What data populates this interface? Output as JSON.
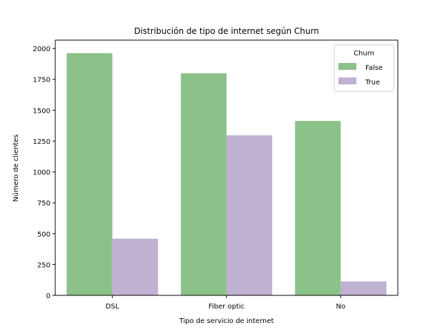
{
  "chart_data": {
    "type": "bar",
    "title": "Distribución de tipo de internet según Churn",
    "xlabel": "Tipo de servicio de internet",
    "ylabel": "Número de clientes",
    "categories": [
      "DSL",
      "Fiber optic",
      "No"
    ],
    "series": [
      {
        "name": "False",
        "color": "#8bc289",
        "values": [
          1962,
          1799,
          1413
        ]
      },
      {
        "name": "True",
        "color": "#bfb1d2",
        "values": [
          459,
          1297,
          113
        ]
      }
    ],
    "ylim": [
      0,
      2068
    ],
    "yticks": [
      0,
      250,
      500,
      750,
      1000,
      1250,
      1500,
      1750,
      2000
    ],
    "ytick_labels": [
      "0",
      "250",
      "500",
      "750",
      "1000",
      "1250",
      "1500",
      "1750",
      "2000"
    ],
    "grid": false,
    "legend": {
      "title": "Churn",
      "position": "top-right"
    }
  }
}
